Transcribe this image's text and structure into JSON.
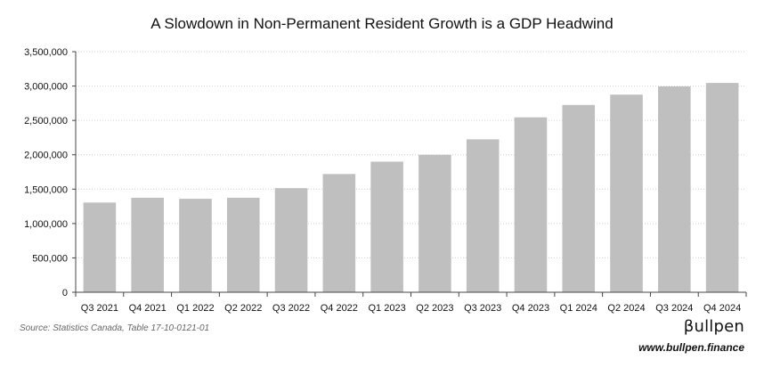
{
  "chart_data": {
    "type": "bar",
    "title": "A Slowdown in Non-Permanent Resident Growth is a GDP Headwind",
    "xlabel": "",
    "ylabel": "",
    "categories": [
      "Q3 2021",
      "Q4 2021",
      "Q1 2022",
      "Q2 2022",
      "Q3 2022",
      "Q4 2022",
      "Q1 2023",
      "Q2 2023",
      "Q3 2023",
      "Q4 2023",
      "Q1 2024",
      "Q2 2024",
      "Q3 2024",
      "Q4 2024"
    ],
    "values": [
      1305000,
      1375000,
      1360000,
      1375000,
      1515000,
      1720000,
      1900000,
      2000000,
      2225000,
      2545000,
      2725000,
      2875000,
      2995000,
      3045000
    ],
    "ylim": [
      0,
      3500000
    ],
    "yticks": [
      0,
      500000,
      1000000,
      1500000,
      2000000,
      2500000,
      3000000,
      3500000
    ],
    "ytick_labels": [
      "0",
      "500,000",
      "1,000,000",
      "1,500,000",
      "2,000,000",
      "2,500,000",
      "3,000,000",
      "3,500,000"
    ],
    "grid": true,
    "legend": "none",
    "bar_color": "#bfbfbf",
    "grid_color": "#d0d0d0"
  },
  "footer": {
    "source": "Source: Statistics Canada, Table 17-10-0121-01",
    "brand_name": "βullpen",
    "brand_url": "www.bullpen.finance"
  }
}
